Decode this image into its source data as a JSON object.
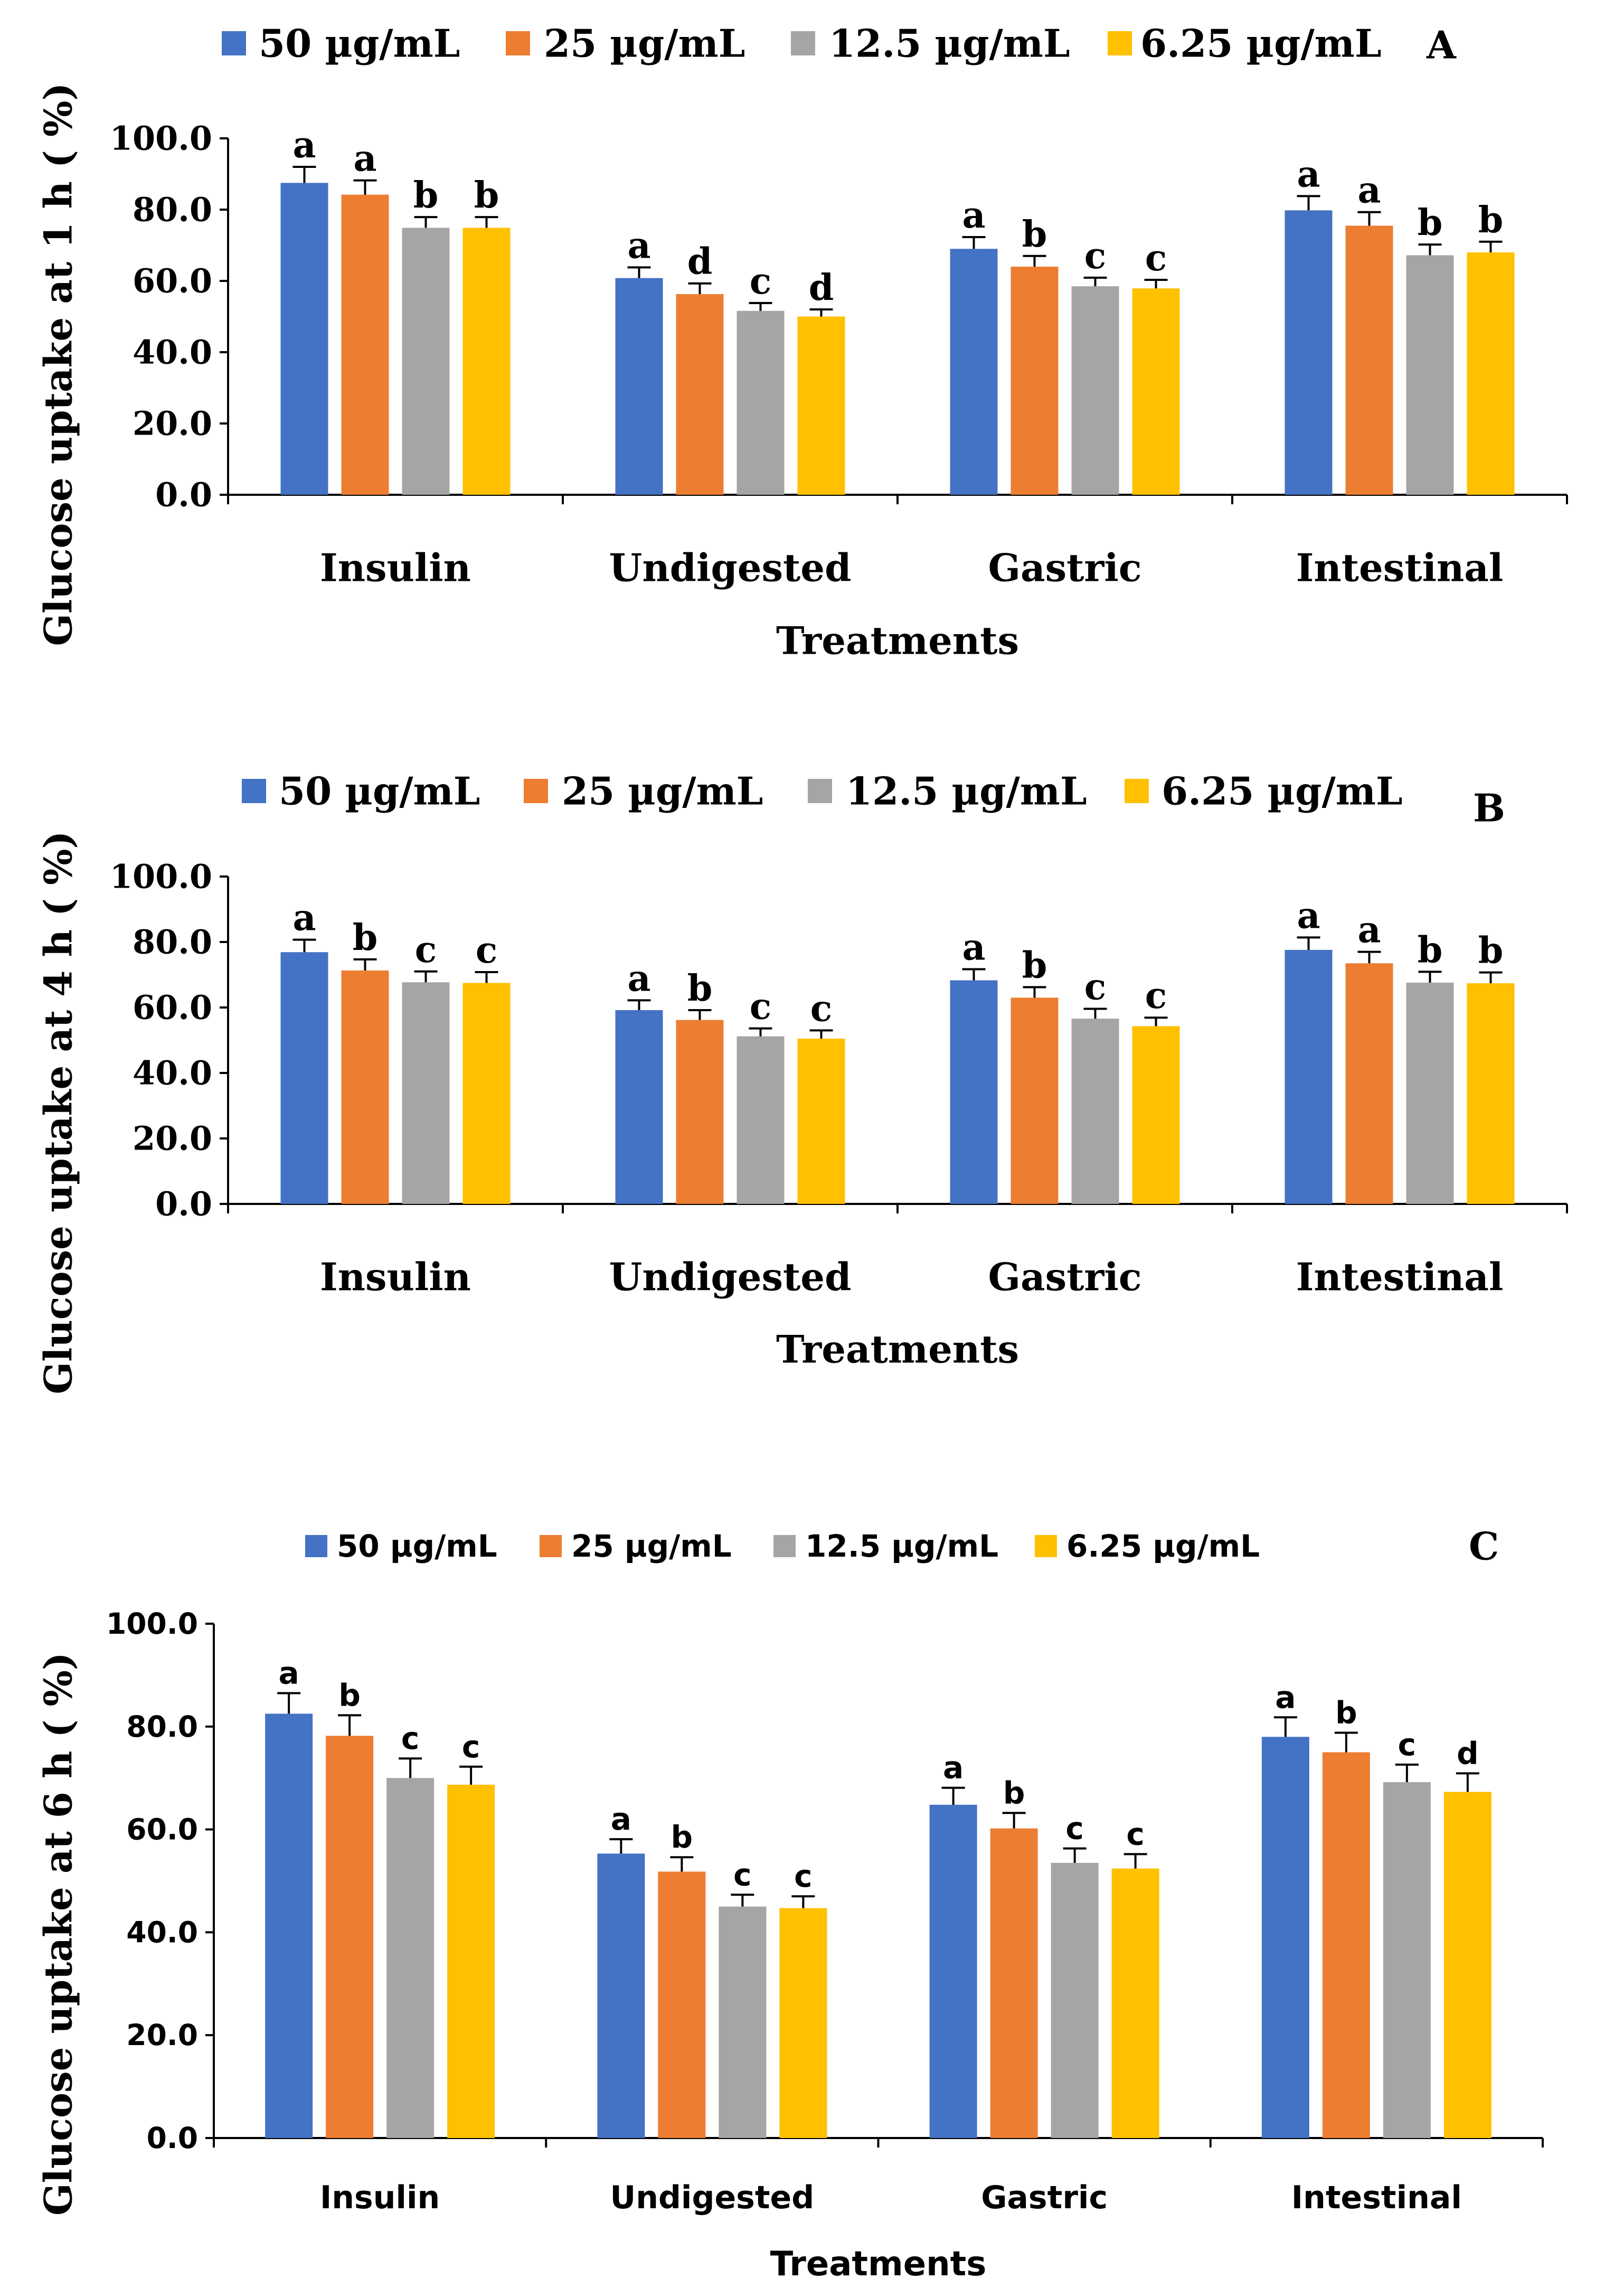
{
  "colors": {
    "series": [
      "#4472c4",
      "#ed7d31",
      "#a5a5a5",
      "#ffc000"
    ],
    "axis": "#000000",
    "error_bar": "#000000"
  },
  "chart_data": [
    {
      "type": "bar",
      "panel_label": "A",
      "title": "",
      "xlabel": "Treatments",
      "ylabel": "Glucose uptake at 1 h ( %)",
      "ylim": [
        0,
        100
      ],
      "yticks": [
        "0.0",
        "20.0",
        "40.0",
        "60.0",
        "80.0",
        "100.0"
      ],
      "grid": false,
      "legend_position": "top",
      "categories": [
        "Insulin",
        "Undigested",
        "Gastric",
        "Intestinal"
      ],
      "series": [
        {
          "name": "50 µg/mL",
          "values": [
            87.5,
            60.8,
            69.0,
            79.8
          ],
          "errors": [
            4.5,
            3.0,
            3.3,
            4.0
          ],
          "letters": [
            "a",
            "a",
            "a",
            "a"
          ]
        },
        {
          "name": "25 µg/mL",
          "values": [
            84.2,
            56.3,
            64.0,
            75.5
          ],
          "errors": [
            4.0,
            3.0,
            3.0,
            3.8
          ],
          "letters": [
            "a",
            "d",
            "b",
            "a"
          ]
        },
        {
          "name": "12.5 µg/mL",
          "values": [
            74.9,
            51.6,
            58.5,
            67.2
          ],
          "errors": [
            3.0,
            2.2,
            2.4,
            3.0
          ],
          "letters": [
            "b",
            "c",
            "c",
            "b"
          ]
        },
        {
          "name": "6.25 µg/mL",
          "values": [
            74.9,
            50.0,
            57.9,
            68.0
          ],
          "errors": [
            3.0,
            2.0,
            2.4,
            3.0
          ],
          "letters": [
            "b",
            "d",
            "c",
            "b"
          ]
        }
      ]
    },
    {
      "type": "bar",
      "panel_label": "B",
      "title": "",
      "xlabel": "Treatments",
      "ylabel": "Glucose uptake at 4 h ( %)",
      "ylim": [
        0,
        100
      ],
      "yticks": [
        "0.0",
        "20.0",
        "40.0",
        "60.0",
        "80.0",
        "100.0"
      ],
      "grid": false,
      "legend_position": "top",
      "categories": [
        "Insulin",
        "Undigested",
        "Gastric",
        "Intestinal"
      ],
      "series": [
        {
          "name": "50 µg/mL",
          "values": [
            76.9,
            59.2,
            68.3,
            77.6
          ],
          "errors": [
            3.8,
            3.0,
            3.4,
            3.8
          ],
          "letters": [
            "a",
            "a",
            "a",
            "a"
          ]
        },
        {
          "name": "25 µg/mL",
          "values": [
            71.3,
            56.2,
            63.0,
            73.5
          ],
          "errors": [
            3.4,
            3.0,
            3.2,
            3.5
          ],
          "letters": [
            "b",
            "b",
            "b",
            "a"
          ]
        },
        {
          "name": "12.5 µg/mL",
          "values": [
            67.7,
            51.2,
            56.6,
            67.6
          ],
          "errors": [
            3.3,
            2.4,
            3.0,
            3.3
          ],
          "letters": [
            "c",
            "c",
            "c",
            "b"
          ]
        },
        {
          "name": "6.25 µg/mL",
          "values": [
            67.5,
            50.5,
            54.3,
            67.4
          ],
          "errors": [
            3.3,
            2.5,
            2.6,
            3.3
          ],
          "letters": [
            "c",
            "c",
            "c",
            "b"
          ]
        }
      ]
    },
    {
      "type": "bar",
      "panel_label": "C",
      "title": "",
      "xlabel": "Treatments",
      "ylabel": "Glucose uptake at 6 h ( %)",
      "ylim": [
        0,
        100
      ],
      "yticks": [
        "0.0",
        "20.0",
        "40.0",
        "60.0",
        "80.0",
        "100.0"
      ],
      "grid": false,
      "legend_position": "top",
      "categories": [
        "Insulin",
        "Undigested",
        "Gastric",
        "Intestinal"
      ],
      "series": [
        {
          "name": "50 µg/mL",
          "values": [
            82.5,
            55.3,
            64.8,
            78.0
          ],
          "errors": [
            4.0,
            2.8,
            3.3,
            3.8
          ],
          "letters": [
            "a",
            "a",
            "a",
            "a"
          ]
        },
        {
          "name": "25 µg/mL",
          "values": [
            78.2,
            51.8,
            60.2,
            75.0
          ],
          "errors": [
            4.0,
            2.8,
            3.0,
            3.8
          ],
          "letters": [
            "b",
            "b",
            "b",
            "b"
          ]
        },
        {
          "name": "12.5 µg/mL",
          "values": [
            70.0,
            45.0,
            53.5,
            69.2
          ],
          "errors": [
            3.8,
            2.3,
            2.8,
            3.4
          ],
          "letters": [
            "c",
            "c",
            "c",
            "c"
          ]
        },
        {
          "name": "6.25 µg/mL",
          "values": [
            68.7,
            44.7,
            52.4,
            67.3
          ],
          "errors": [
            3.5,
            2.3,
            2.8,
            3.6
          ],
          "letters": [
            "c",
            "c",
            "c",
            "d"
          ]
        }
      ]
    }
  ]
}
